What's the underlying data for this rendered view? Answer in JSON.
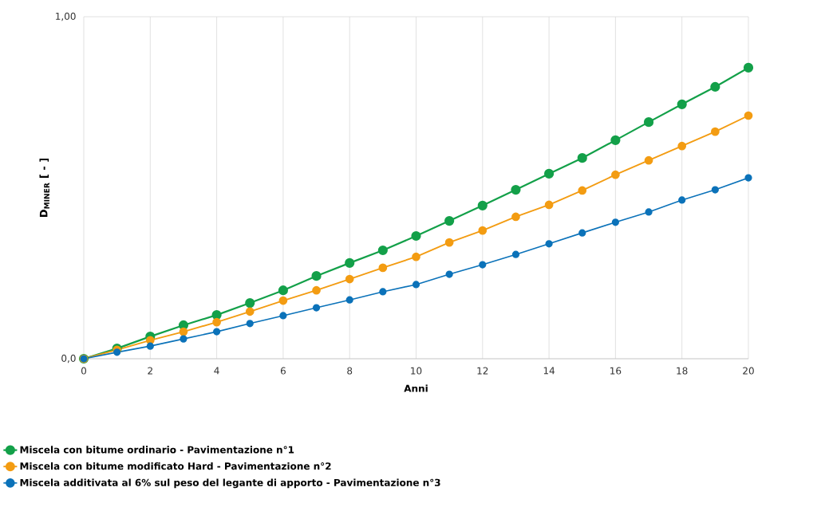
{
  "chart_data": {
    "type": "line",
    "xlabel": "Anni",
    "ylabel": "D$_{MINER}$ [ - ]",
    "x": [
      0,
      1,
      2,
      3,
      4,
      5,
      6,
      7,
      8,
      9,
      10,
      11,
      12,
      13,
      14,
      15,
      16,
      17,
      18,
      19,
      20
    ],
    "xlim": [
      0,
      20
    ],
    "xticks": [
      0,
      2,
      4,
      6,
      8,
      10,
      12,
      14,
      16,
      18,
      20
    ],
    "ylim": [
      0,
      1
    ],
    "yticks": [
      {
        "value": 0,
        "label": "0,0"
      },
      {
        "value": 1,
        "label": "1,00"
      }
    ],
    "grid": true,
    "legend": "bottom",
    "marker": "circle",
    "line_style": "solid",
    "series": [
      {
        "name": "Miscela con bitume ordinario - Pavimentazione n°1",
        "color": "#13a049",
        "values": [
          0,
          0.03,
          0.065,
          0.098,
          0.128,
          0.163,
          0.2,
          0.242,
          0.28,
          0.317,
          0.359,
          0.403,
          0.448,
          0.494,
          0.541,
          0.587,
          0.639,
          0.692,
          0.744,
          0.795,
          0.851
        ]
      },
      {
        "name": "Miscela con bitume modificato Hard - Pavimentazione n°2",
        "color": "#f39c12",
        "values": [
          0,
          0.026,
          0.054,
          0.079,
          0.107,
          0.138,
          0.17,
          0.2,
          0.233,
          0.266,
          0.298,
          0.34,
          0.375,
          0.415,
          0.45,
          0.492,
          0.538,
          0.58,
          0.622,
          0.664,
          0.711
        ]
      },
      {
        "name": "Miscela additivata al 6% sul peso del legante di apporto - Pavimentazione n°3",
        "color": "#0b72b9",
        "values": [
          0,
          0.019,
          0.037,
          0.058,
          0.079,
          0.103,
          0.126,
          0.149,
          0.172,
          0.196,
          0.217,
          0.247,
          0.275,
          0.305,
          0.336,
          0.368,
          0.399,
          0.429,
          0.464,
          0.494,
          0.529
        ]
      }
    ]
  }
}
